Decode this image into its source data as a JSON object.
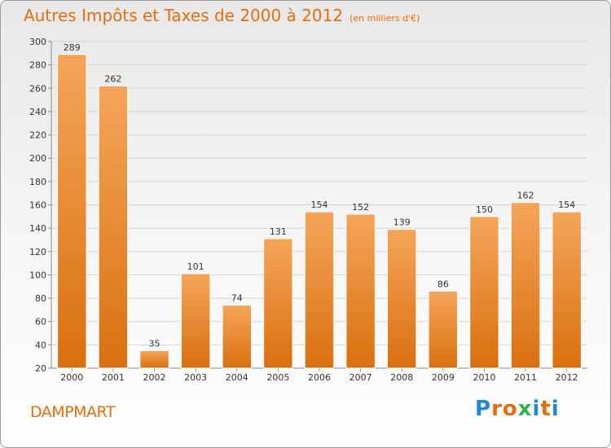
{
  "header": {
    "title": "Autres Impôts et Taxes de 2000 à 2012",
    "unit": "(en milliers d'€)"
  },
  "footer": {
    "commune": "DAMPMART",
    "logo_letters": [
      "P",
      "r",
      "o",
      "x",
      "i",
      "t",
      "i"
    ],
    "logo_colors": [
      "#1e88d8",
      "#e46d0e",
      "#e46d0e",
      "#2fb34a",
      "#1e88d8",
      "#e46d0e",
      "#1e88d8"
    ]
  },
  "colors": {
    "accent": "#e46d0e",
    "bar_top": "#f5a55a",
    "bar_bottom": "#d9700f",
    "bar_edge": "#ffffff"
  },
  "chart_data": {
    "type": "bar",
    "categories": [
      "2000",
      "2001",
      "2002",
      "2003",
      "2004",
      "2005",
      "2006",
      "2007",
      "2008",
      "2009",
      "2010",
      "2011",
      "2012"
    ],
    "values": [
      289,
      262,
      35,
      101,
      74,
      131,
      154,
      152,
      139,
      86,
      150,
      162,
      154
    ],
    "data_labels": [
      "289",
      "262",
      "35",
      "101",
      "74",
      "131",
      "154",
      "152",
      "139",
      "86",
      "150",
      "162",
      "154"
    ],
    "ylim": [
      20,
      300
    ],
    "yticks": [
      "20",
      "40",
      "60",
      "80",
      "100",
      "120",
      "140",
      "160",
      "180",
      "200",
      "220",
      "240",
      "260",
      "280",
      "300"
    ],
    "grid": true
  }
}
